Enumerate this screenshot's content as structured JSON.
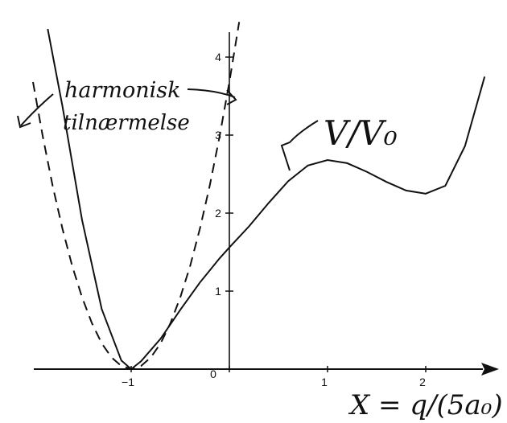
{
  "chart_data": {
    "type": "line",
    "xlim": [
      -2.2,
      2.5
    ],
    "ylim": [
      0,
      4.3
    ],
    "x_ticks": [
      {
        "value": -1,
        "label": "−1"
      },
      {
        "value": 0,
        "label": "0"
      },
      {
        "value": 1,
        "label": "1"
      },
      {
        "value": 2,
        "label": "2"
      }
    ],
    "y_ticks": [
      {
        "value": 1,
        "label": "1"
      },
      {
        "value": 2,
        "label": "2"
      },
      {
        "value": 3,
        "label": "3"
      },
      {
        "value": 4,
        "label": "4"
      }
    ],
    "series": [
      {
        "name": "V/V₀",
        "style": "solid",
        "x": [
          -1.85,
          -1.7,
          -1.5,
          -1.3,
          -1.1,
          -1.0,
          -0.9,
          -0.7,
          -0.5,
          -0.3,
          -0.1,
          0.0,
          0.2,
          0.4,
          0.6,
          0.8,
          1.0,
          1.2,
          1.4,
          1.6,
          1.8,
          2.0,
          2.2,
          2.4,
          2.6
        ],
        "y": [
          4.36,
          3.37,
          1.91,
          0.77,
          0.11,
          0.0,
          0.1,
          0.39,
          0.76,
          1.11,
          1.42,
          1.56,
          1.83,
          2.13,
          2.41,
          2.61,
          2.68,
          2.64,
          2.53,
          2.4,
          2.29,
          2.25,
          2.35,
          2.86,
          3.75
        ]
      },
      {
        "name": "harmonisk tilnærmelse",
        "style": "dashed",
        "x": [
          -2.0,
          -1.9,
          -1.8,
          -1.7,
          -1.6,
          -1.5,
          -1.4,
          -1.3,
          -1.2,
          -1.1,
          -1.0,
          -0.9,
          -0.8,
          -0.7,
          -0.6,
          -0.5,
          -0.4,
          -0.3,
          -0.2,
          -0.1,
          0.0,
          0.1
        ],
        "y": [
          3.68,
          2.98,
          2.35,
          1.8,
          1.32,
          0.92,
          0.59,
          0.33,
          0.15,
          0.04,
          0.0,
          0.04,
          0.15,
          0.33,
          0.59,
          0.92,
          1.32,
          1.8,
          2.35,
          2.98,
          3.68,
          4.45
        ]
      }
    ],
    "annotations": {
      "harmonic": [
        "harmonisk",
        "tilnærmelse"
      ],
      "potential": "V/V₀",
      "xlabel": "X = q/(5a₀)"
    }
  }
}
